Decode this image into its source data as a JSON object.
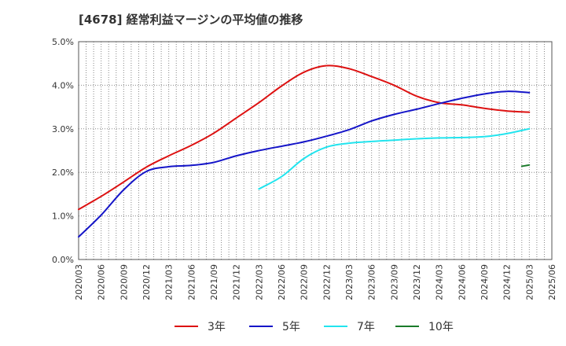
{
  "chart_data": {
    "type": "line",
    "title": "[4678]  経常利益マージンの平均値の推移",
    "x_labels": [
      "2020/03",
      "2020/06",
      "2020/09",
      "2020/12",
      "2021/03",
      "2021/06",
      "2021/09",
      "2021/12",
      "2022/03",
      "2022/06",
      "2022/09",
      "2022/12",
      "2023/03",
      "2023/06",
      "2023/09",
      "2023/12",
      "2024/03",
      "2024/06",
      "2024/09",
      "2024/12",
      "2025/03",
      "2025/06"
    ],
    "y_ticks": [
      "0.0%",
      "1.0%",
      "2.0%",
      "3.0%",
      "4.0%",
      "5.0%"
    ],
    "ylim": [
      0,
      5.0
    ],
    "grid": true,
    "legend_position": "bottom",
    "series": [
      {
        "name": "3年",
        "color": "#dd1111",
        "values": [
          1.15,
          1.45,
          1.78,
          2.12,
          2.38,
          2.62,
          2.9,
          3.25,
          3.6,
          3.98,
          4.3,
          4.45,
          4.38,
          4.2,
          4.0,
          3.75,
          3.6,
          3.55,
          3.47,
          3.41,
          3.38,
          null
        ]
      },
      {
        "name": "5年",
        "color": "#1515c8",
        "values": [
          0.52,
          1.02,
          1.6,
          2.02,
          2.13,
          2.16,
          2.23,
          2.38,
          2.5,
          2.6,
          2.7,
          2.83,
          2.98,
          3.18,
          3.33,
          3.45,
          3.58,
          3.7,
          3.8,
          3.86,
          3.83,
          null
        ]
      },
      {
        "name": "7年",
        "color": "#22e4ee",
        "values": [
          null,
          null,
          null,
          null,
          null,
          null,
          null,
          null,
          1.62,
          1.9,
          2.32,
          2.58,
          2.67,
          2.71,
          2.74,
          2.77,
          2.79,
          2.8,
          2.82,
          2.89,
          3.0,
          null
        ]
      },
      {
        "name": "10年",
        "color": "#1a7a2a",
        "values": [
          null,
          null,
          null,
          null,
          null,
          null,
          null,
          null,
          null,
          null,
          null,
          null,
          null,
          null,
          null,
          null,
          null,
          null,
          null,
          null,
          2.17,
          null
        ],
        "start_value": 2.14
      }
    ]
  }
}
